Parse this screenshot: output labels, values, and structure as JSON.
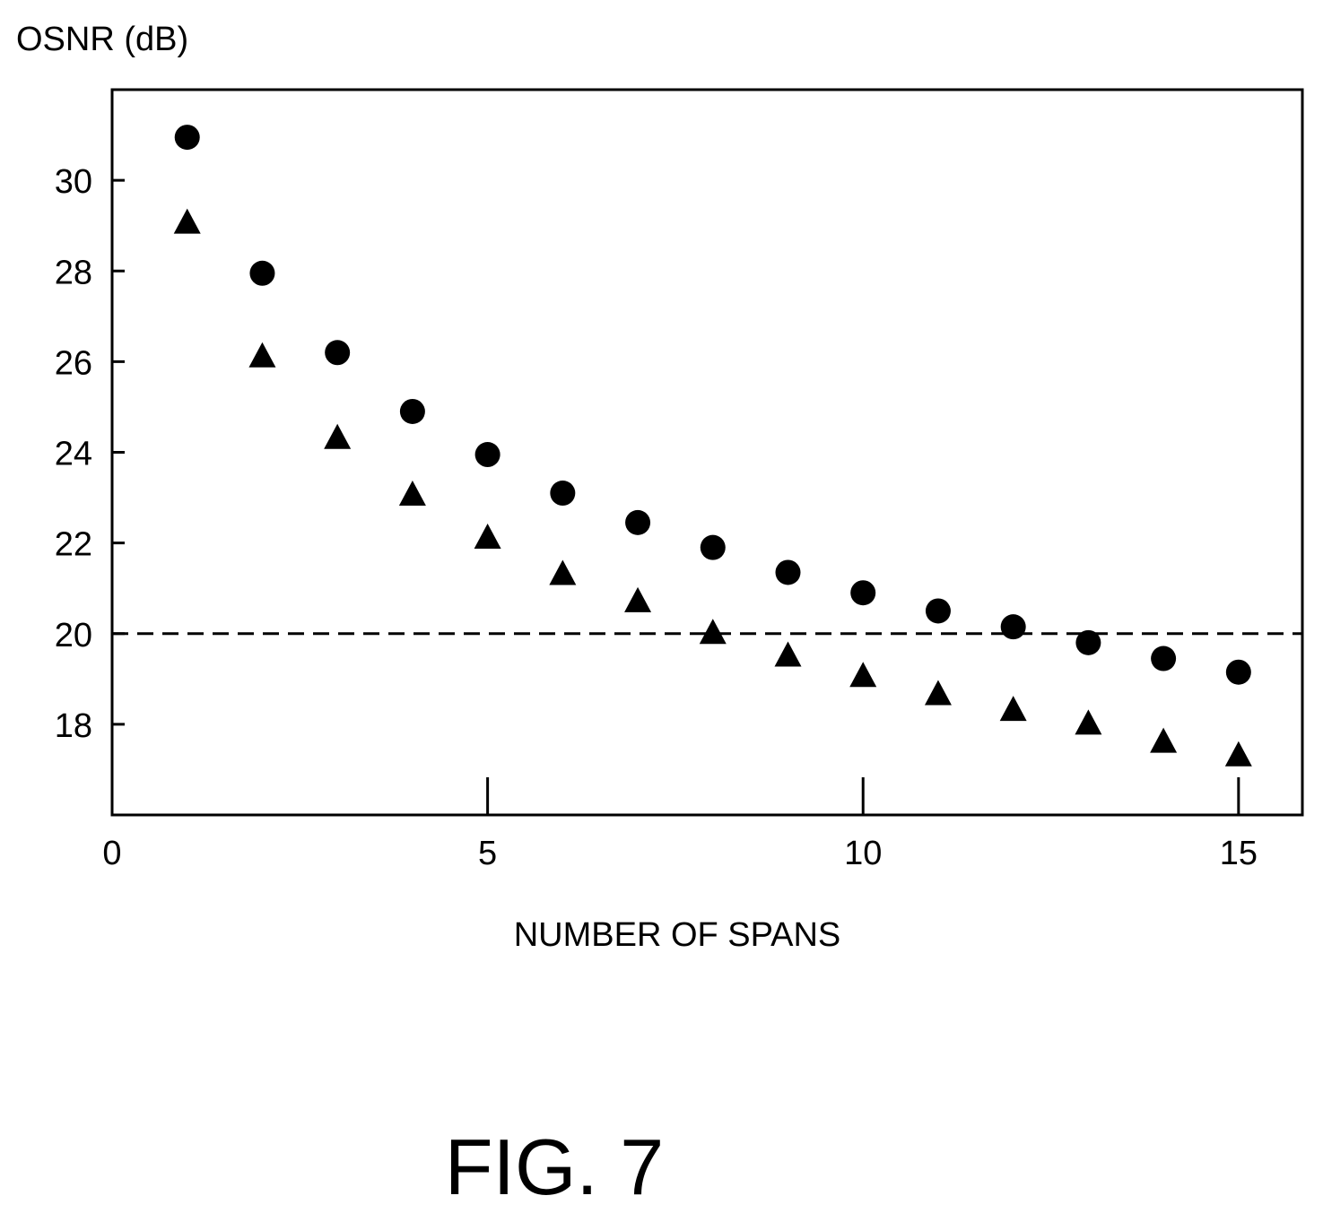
{
  "figure_label": "FIG. 7",
  "chart_data": {
    "type": "scatter",
    "ylabel": "OSNR (dB)",
    "xlabel": "NUMBER OF SPANS",
    "xlim": [
      0,
      15.85
    ],
    "ylim": [
      16,
      32
    ],
    "x_ticks": [
      0,
      5,
      10,
      15
    ],
    "x_tick_marks": [
      5,
      10,
      15
    ],
    "y_ticks": [
      18,
      20,
      22,
      24,
      26,
      28,
      30
    ],
    "grid": false,
    "legend": "none",
    "reference_line": {
      "y": 20,
      "style": "dashed"
    },
    "series": [
      {
        "marker": "circle",
        "x": [
          1,
          2,
          3,
          4,
          5,
          6,
          7,
          8,
          9,
          10,
          11,
          12,
          13,
          14,
          15
        ],
        "y": [
          30.95,
          27.95,
          26.2,
          24.9,
          23.95,
          23.1,
          22.45,
          21.9,
          21.35,
          20.9,
          20.5,
          20.15,
          19.8,
          19.45,
          19.15
        ]
      },
      {
        "marker": "triangle",
        "x": [
          1,
          2,
          3,
          4,
          5,
          6,
          7,
          8,
          9,
          10,
          11,
          12,
          13,
          14,
          15
        ],
        "y": [
          29.1,
          26.15,
          24.35,
          23.1,
          22.15,
          21.35,
          20.75,
          20.05,
          19.55,
          19.1,
          18.7,
          18.35,
          18.05,
          17.65,
          17.35
        ]
      }
    ]
  }
}
